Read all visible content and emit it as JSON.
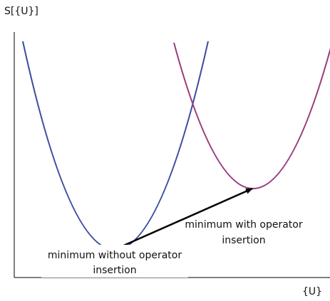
{
  "axes": {
    "y_label": "S[{U}]",
    "x_label": "{U}"
  },
  "annotations": [
    {
      "lines": [
        "minimum without operator",
        "insertion"
      ]
    },
    {
      "lines": [
        "minimum with operator",
        "insertion"
      ]
    }
  ]
}
